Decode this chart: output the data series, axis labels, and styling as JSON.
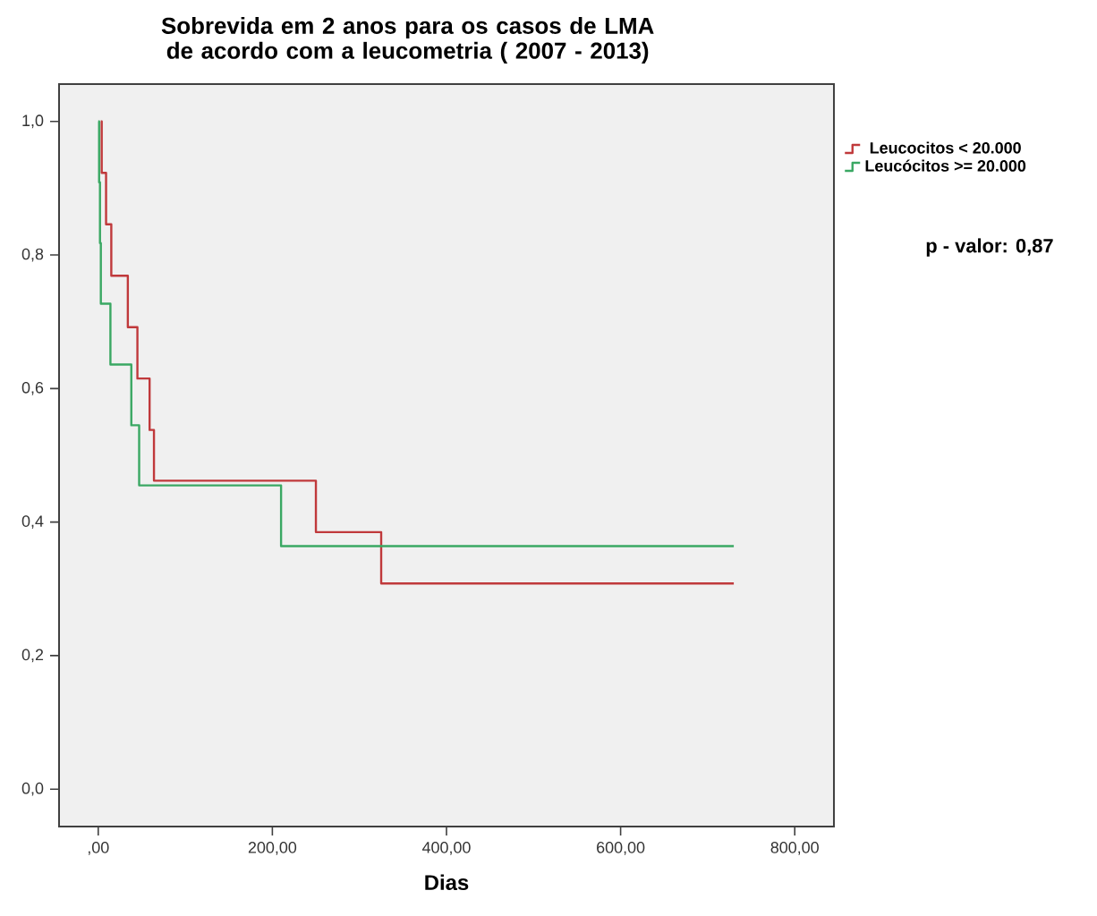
{
  "chart_data": {
    "type": "step",
    "title": "Sobrevida em 2 anos para os casos de LMA de acordo com a leucometria ( 2007 - 2013)",
    "xlabel": "Dias",
    "series": [
      {
        "name": "Leucocitos < 20.000",
        "color": "#c0393b",
        "x": [
          3,
          4,
          9,
          15,
          34,
          45,
          59,
          64,
          250,
          325,
          730
        ],
        "values": [
          1.0,
          0.923,
          0.846,
          0.769,
          0.692,
          0.615,
          0.538,
          0.462,
          0.385,
          0.308,
          0.308
        ]
      },
      {
        "name": "Leucócitos >= 20.000",
        "color": "#3aa863",
        "x": [
          0,
          1,
          2,
          3,
          14,
          38,
          47,
          210,
          730
        ],
        "values": [
          1.0,
          0.909,
          0.818,
          0.727,
          0.636,
          0.545,
          0.455,
          0.364,
          0.364
        ]
      }
    ],
    "xlim": [
      -45,
      845
    ],
    "ylim": [
      -0.056,
      1.056
    ],
    "xticks": [
      {
        "value": 0,
        "label": ",00"
      },
      {
        "value": 200,
        "label": "200,00"
      },
      {
        "value": 400,
        "label": "400,00"
      },
      {
        "value": 600,
        "label": "600,00"
      },
      {
        "value": 800,
        "label": "800,00"
      }
    ],
    "yticks": [
      {
        "value": 0,
        "label": "0,0"
      },
      {
        "value": 0.2,
        "label": "0,2"
      },
      {
        "value": 0.4,
        "label": "0,4"
      },
      {
        "value": 0.6,
        "label": "0,6"
      },
      {
        "value": 0.8,
        "label": "0,8"
      },
      {
        "value": 1.0,
        "label": "1,0"
      }
    ],
    "legend": "right",
    "annotations": [
      "p - valor: 0,87"
    ]
  }
}
